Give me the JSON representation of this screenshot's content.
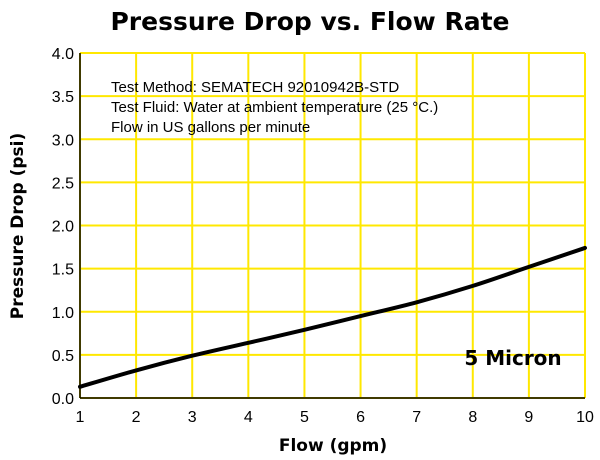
{
  "chart_data": {
    "type": "line",
    "title": "Pressure Drop vs. Flow Rate",
    "xlabel": "Flow (gpm)",
    "ylabel": "Pressure Drop (psi)",
    "xlim": [
      1,
      10
    ],
    "ylim": [
      0,
      4.0
    ],
    "xticks": [
      "1",
      "2",
      "3",
      "4",
      "5",
      "6",
      "7",
      "8",
      "9",
      "10"
    ],
    "yticks": [
      "0.0",
      "0.5",
      "1.0",
      "1.5",
      "2.0",
      "2.5",
      "3.0",
      "3.5",
      "4.0"
    ],
    "grid": true,
    "grid_color": "#ffe800",
    "line_color": "#000000",
    "notes": [
      "Test Method: SEMATECH 92010942B-STD",
      "Test Fluid: Water at ambient temperature (25 °C.)",
      "Flow in US gallons per minute"
    ],
    "series": [
      {
        "name": "5 Micron",
        "x": [
          1,
          2,
          3,
          4,
          5,
          6,
          7,
          8,
          9,
          10
        ],
        "y": [
          0.13,
          0.32,
          0.49,
          0.64,
          0.79,
          0.95,
          1.11,
          1.3,
          1.52,
          1.74
        ]
      }
    ]
  }
}
